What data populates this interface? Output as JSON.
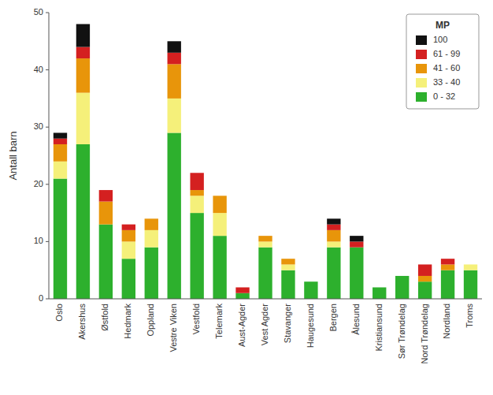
{
  "chart_data": {
    "type": "bar",
    "stacked": true,
    "categories": [
      "Oslo",
      "Akershus",
      "Østfold",
      "Hedmark",
      "Oppland",
      "Vestre Viken",
      "Vestfold",
      "Telemark",
      "Aust-Agder",
      "Vest Agder",
      "Stavanger",
      "Haugesund",
      "Bergen",
      "Ålesund",
      "Kristiansund",
      "Sør Trøndelag",
      "Nord Trøndelag",
      "Nordland",
      "Troms"
    ],
    "series": [
      {
        "name": "0 - 32",
        "color": "#2db02d",
        "values": [
          21,
          27,
          13,
          7,
          9,
          29,
          15,
          11,
          1,
          9,
          5,
          3,
          9,
          9,
          2,
          4,
          3,
          5,
          5
        ]
      },
      {
        "name": "33 - 40",
        "color": "#f5f07a",
        "values": [
          3,
          9,
          0,
          3,
          3,
          6,
          3,
          4,
          0,
          1,
          1,
          0,
          1,
          0,
          0,
          0,
          0,
          0,
          1
        ]
      },
      {
        "name": "41 - 60",
        "color": "#e8950a",
        "values": [
          3,
          6,
          4,
          2,
          2,
          6,
          1,
          3,
          0,
          1,
          1,
          0,
          2,
          0,
          0,
          0,
          1,
          1,
          0
        ]
      },
      {
        "name": "61 - 99",
        "color": "#d42020",
        "values": [
          1,
          2,
          2,
          1,
          0,
          2,
          3,
          0,
          1,
          0,
          0,
          0,
          1,
          1,
          0,
          0,
          2,
          1,
          0
        ]
      },
      {
        "name": "100",
        "color": "#111111",
        "values": [
          1,
          4,
          0,
          0,
          0,
          2,
          0,
          0,
          0,
          0,
          0,
          0,
          1,
          1,
          0,
          0,
          0,
          0,
          0
        ]
      }
    ],
    "ylabel": "Antall barn",
    "legend_title": "MP",
    "legend": "upper right",
    "ylim": [
      0,
      50
    ],
    "yticks": [
      0,
      10,
      20,
      30,
      40,
      50
    ],
    "grid": false
  }
}
